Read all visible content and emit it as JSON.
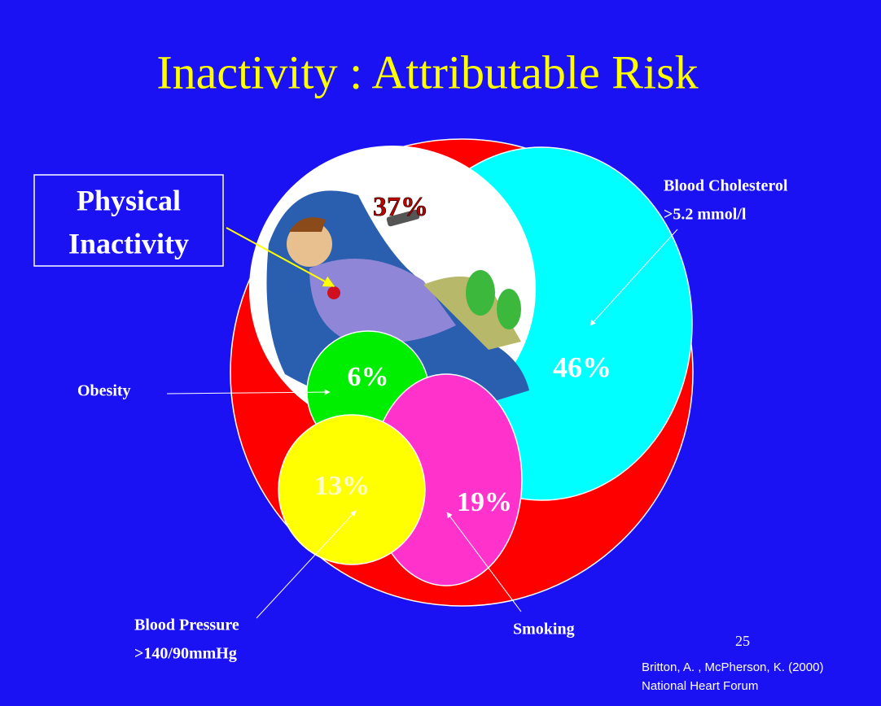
{
  "title": "Inactivity : Attributable Risk",
  "inactivity": {
    "value": "37%",
    "label": [
      "Physical",
      "Inactivity"
    ]
  },
  "cholesterol": {
    "value": "46%",
    "label": [
      "Blood Cholesterol",
      ">5.2 mmol/l"
    ]
  },
  "obesity": {
    "value": "6%",
    "label": [
      "Obesity"
    ]
  },
  "blood_pressure": {
    "value": "13%",
    "label": [
      "Blood Pressure",
      ">140/90mmHg"
    ]
  },
  "smoking": {
    "value": "19%",
    "label": [
      "Smoking"
    ]
  },
  "page_number": "25",
  "citation": [
    "Britton, A. , McPherson, K. (2000)",
    "National Heart Forum"
  ]
}
